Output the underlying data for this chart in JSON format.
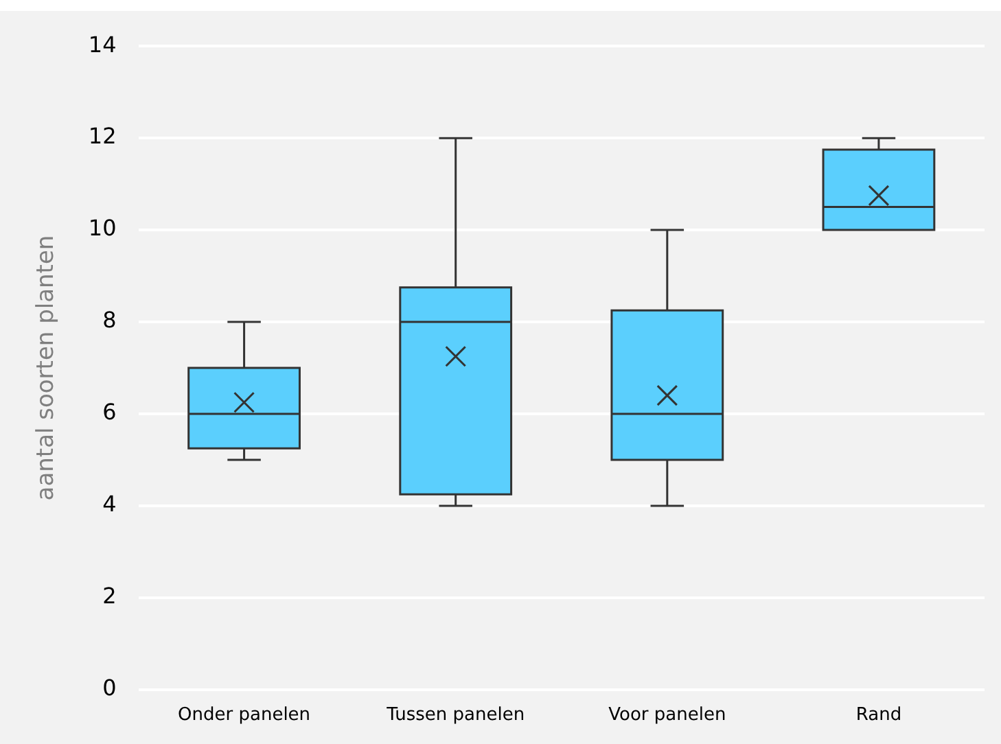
{
  "chart_data": {
    "type": "box",
    "ylabel": "aantal soorten planten",
    "categories": [
      "Onder panelen",
      "Tussen panelen",
      "Voor panelen",
      "Rand"
    ],
    "color": "#5bcffd",
    "boxes": [
      {
        "low": 5,
        "q1": 5.25,
        "median": 6,
        "q3": 7,
        "high": 8,
        "mean": 6.25
      },
      {
        "low": 4,
        "q1": 4.25,
        "median": 8,
        "q3": 8.75,
        "high": 12,
        "mean": 7.25
      },
      {
        "low": 4,
        "q1": 5,
        "median": 6,
        "q3": 8.25,
        "high": 10,
        "mean": 6.4
      },
      {
        "low": 10,
        "q1": 10,
        "median": 10.5,
        "q3": 11.75,
        "high": 12,
        "mean": 10.75
      }
    ],
    "ylim": [
      0,
      14
    ],
    "yticks": [
      0,
      2,
      4,
      6,
      8,
      10,
      12,
      14
    ],
    "grid": "y",
    "legend": false,
    "marker": "cross"
  }
}
